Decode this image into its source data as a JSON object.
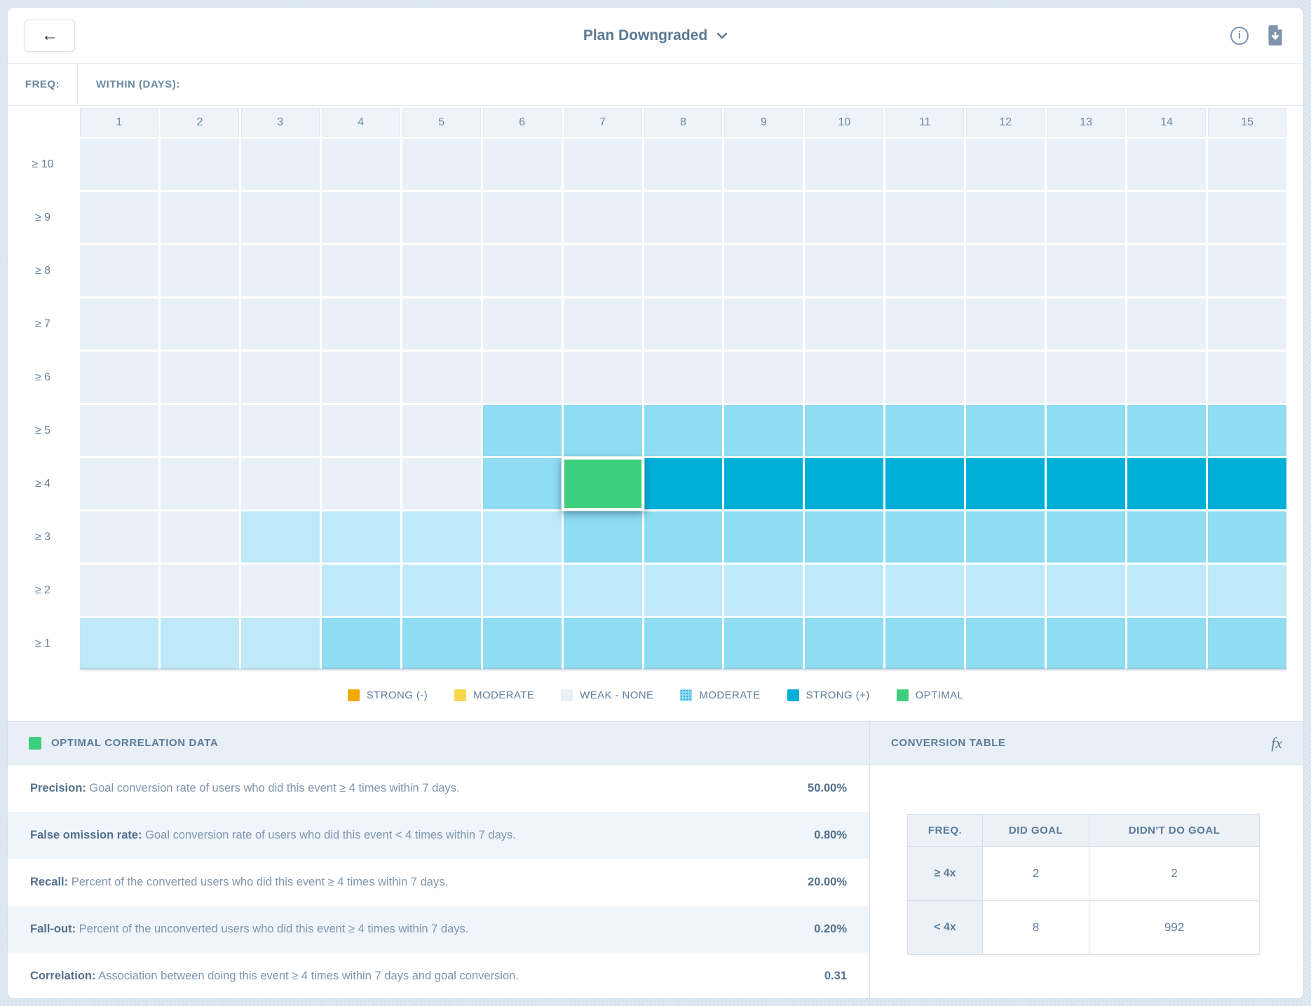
{
  "header": {
    "back_icon": "←",
    "title": "Plan Downgraded",
    "icons": {
      "back": "arrow-left",
      "title_chevron": "chevron-down",
      "info": "info-circle",
      "export": "file-download"
    }
  },
  "grid": {
    "freq_label": "FREQ:",
    "within_label": "WITHIN (DAYS):",
    "columns": [
      "1",
      "2",
      "3",
      "4",
      "5",
      "6",
      "7",
      "8",
      "9",
      "10",
      "11",
      "12",
      "13",
      "14",
      "15"
    ],
    "rows": [
      {
        "label": "≥ 10",
        "cells": [
          "weak",
          "weak",
          "weak",
          "weak",
          "weak",
          "weak",
          "weak",
          "weak",
          "weak",
          "weak",
          "weak",
          "weak",
          "weak",
          "weak",
          "weak"
        ]
      },
      {
        "label": "≥ 9",
        "cells": [
          "weak",
          "weak",
          "weak",
          "weak",
          "weak",
          "weak",
          "weak",
          "weak",
          "weak",
          "weak",
          "weak",
          "weak",
          "weak",
          "weak",
          "weak"
        ]
      },
      {
        "label": "≥ 8",
        "cells": [
          "weak",
          "weak",
          "weak",
          "weak",
          "weak",
          "weak",
          "weak",
          "weak",
          "weak",
          "weak",
          "weak",
          "weak",
          "weak",
          "weak",
          "weak"
        ]
      },
      {
        "label": "≥ 7",
        "cells": [
          "weak",
          "weak",
          "weak",
          "weak",
          "weak",
          "weak",
          "weak",
          "weak",
          "weak",
          "weak",
          "weak",
          "weak",
          "weak",
          "weak",
          "weak"
        ]
      },
      {
        "label": "≥ 6",
        "cells": [
          "weak",
          "weak",
          "weak",
          "weak",
          "weak",
          "weak",
          "weak",
          "weak",
          "weak",
          "weak",
          "weak",
          "weak",
          "weak",
          "weak",
          "weak"
        ]
      },
      {
        "label": "≥ 5",
        "cells": [
          "weak",
          "weak",
          "weak",
          "weak",
          "weak",
          "moderate",
          "moderate",
          "moderate",
          "moderate",
          "moderate",
          "moderate",
          "moderate",
          "moderate",
          "moderate",
          "moderate"
        ]
      },
      {
        "label": "≥ 4",
        "cells": [
          "weak",
          "weak",
          "weak",
          "weak",
          "weak",
          "moderate",
          "optimal",
          "strong",
          "strong",
          "strong",
          "strong",
          "strong",
          "strong",
          "strong",
          "strong"
        ]
      },
      {
        "label": "≥ 3",
        "cells": [
          "weak",
          "weak",
          "light",
          "light",
          "light",
          "light",
          "moderate",
          "moderate",
          "moderate",
          "moderate",
          "moderate",
          "moderate",
          "moderate",
          "moderate",
          "moderate"
        ]
      },
      {
        "label": "≥ 2",
        "cells": [
          "weak",
          "weak",
          "weak",
          "light",
          "light",
          "light",
          "light",
          "light",
          "light",
          "light",
          "light",
          "light",
          "light",
          "light",
          "light"
        ]
      },
      {
        "label": "≥ 1",
        "cells": [
          "light",
          "light",
          "light",
          "moderate",
          "moderate",
          "moderate",
          "moderate",
          "moderate",
          "moderate",
          "moderate",
          "moderate",
          "moderate",
          "moderate",
          "moderate",
          "moderate"
        ]
      }
    ],
    "selected_cell": {
      "row_label": "≥ 4",
      "column": "7"
    }
  },
  "legend": [
    {
      "label": "STRONG (-)",
      "class": "sw-strong-neg"
    },
    {
      "label": "MODERATE",
      "class": "sw-moderate-neg"
    },
    {
      "label": "WEAK - NONE",
      "class": "sw-weak"
    },
    {
      "label": "MODERATE",
      "class": "sw-moderate-pos"
    },
    {
      "label": "STRONG (+)",
      "class": "sw-strong-pos"
    },
    {
      "label": "OPTIMAL",
      "class": "sw-optimal"
    }
  ],
  "colors": {
    "weak": "#e9f0f7",
    "light": "#bfe9f8",
    "moderate": "#8fdcf3",
    "strong": "#00afd8",
    "optimal": "#3dcf7d",
    "strong_neg": "#f2a90b",
    "moderate_neg": "#f8d64a"
  },
  "optimal_panel": {
    "title": "OPTIMAL CORRELATION DATA",
    "stats": [
      {
        "label": "Precision:",
        "description": "Goal conversion rate of users who did this event ≥ 4 times within 7 days.",
        "value": "50.00%"
      },
      {
        "label": "False omission rate:",
        "description": "Goal conversion rate of users who did this event < 4 times within 7 days.",
        "value": "0.80%"
      },
      {
        "label": "Recall:",
        "description": "Percent of the converted users who did this event ≥ 4 times within 7 days.",
        "value": "20.00%"
      },
      {
        "label": "Fall-out:",
        "description": "Percent of the unconverted users who did this event ≥ 4 times within 7 days.",
        "value": "0.20%"
      },
      {
        "label": "Correlation:",
        "description": "Association between doing this event ≥ 4 times within 7 days and goal conversion.",
        "value": "0.31"
      }
    ]
  },
  "conversion_panel": {
    "title": "CONVERSION TABLE",
    "fx_label": "fx",
    "table": {
      "headers": [
        "FREQ.",
        "DID GOAL",
        "DIDN'T DO GOAL"
      ],
      "rows": [
        {
          "freq": "≥ 4x",
          "did_goal": "2",
          "didnt_do_goal": "2"
        },
        {
          "freq": "< 4x",
          "did_goal": "8",
          "didnt_do_goal": "992"
        }
      ]
    }
  }
}
